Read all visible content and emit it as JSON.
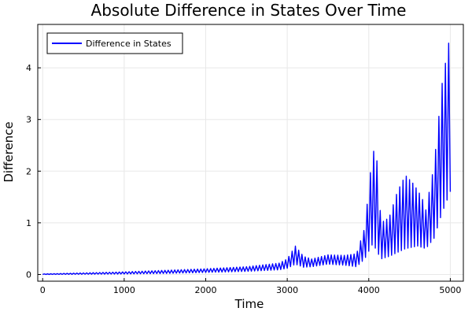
{
  "chart_data": {
    "type": "line",
    "title": "Absolute Difference in States Over Time",
    "xlabel": "Time",
    "ylabel": "Difference",
    "xlim": [
      -60,
      5160
    ],
    "ylim": [
      -0.13,
      4.84
    ],
    "x_ticks": [
      0,
      1000,
      2000,
      3000,
      4000,
      5000
    ],
    "y_ticks": [
      0,
      1,
      2,
      3,
      4
    ],
    "grid": true,
    "legend_position": "top-left",
    "series": [
      {
        "name": "Difference in States",
        "color": "#0000ff",
        "oscillation_period": 40,
        "lower_envelope": [
          [
            0,
            0.0
          ],
          [
            500,
            0.005
          ],
          [
            1000,
            0.01
          ],
          [
            1500,
            0.02
          ],
          [
            2000,
            0.04
          ],
          [
            2500,
            0.06
          ],
          [
            2900,
            0.09
          ],
          [
            3000,
            0.12
          ],
          [
            3100,
            0.2
          ],
          [
            3200,
            0.14
          ],
          [
            3300,
            0.15
          ],
          [
            3500,
            0.2
          ],
          [
            3700,
            0.18
          ],
          [
            3850,
            0.15
          ],
          [
            3950,
            0.3
          ],
          [
            4050,
            0.6
          ],
          [
            4150,
            0.3
          ],
          [
            4250,
            0.35
          ],
          [
            4450,
            0.5
          ],
          [
            4600,
            0.55
          ],
          [
            4700,
            0.5
          ],
          [
            4800,
            0.7
          ],
          [
            4900,
            1.2
          ],
          [
            5000,
            1.6
          ]
        ],
        "upper_envelope": [
          [
            0,
            0.01
          ],
          [
            500,
            0.03
          ],
          [
            1000,
            0.05
          ],
          [
            1500,
            0.08
          ],
          [
            2000,
            0.11
          ],
          [
            2500,
            0.15
          ],
          [
            2900,
            0.22
          ],
          [
            3000,
            0.3
          ],
          [
            3100,
            0.55
          ],
          [
            3200,
            0.35
          ],
          [
            3300,
            0.3
          ],
          [
            3500,
            0.38
          ],
          [
            3700,
            0.37
          ],
          [
            3850,
            0.4
          ],
          [
            3950,
            0.9
          ],
          [
            4050,
            2.43
          ],
          [
            4100,
            2.2
          ],
          [
            4150,
            1.0
          ],
          [
            4250,
            1.1
          ],
          [
            4350,
            1.6
          ],
          [
            4450,
            1.92
          ],
          [
            4550,
            1.75
          ],
          [
            4650,
            1.5
          ],
          [
            4700,
            1.25
          ],
          [
            4800,
            2.1
          ],
          [
            4900,
            3.7
          ],
          [
            5000,
            4.67
          ]
        ]
      }
    ]
  }
}
